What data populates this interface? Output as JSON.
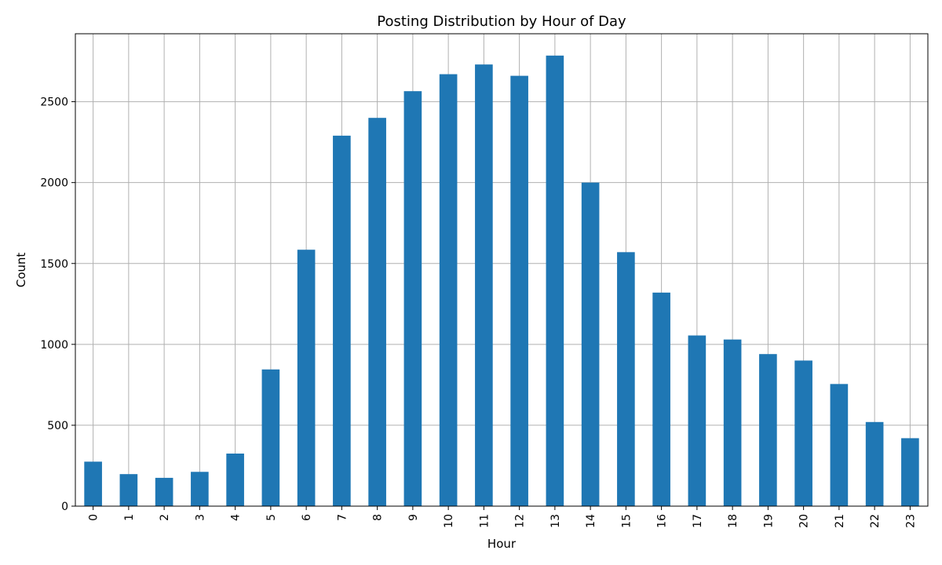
{
  "chart_data": {
    "type": "bar",
    "title": "Posting Distribution by Hour of Day",
    "xlabel": "Hour",
    "ylabel": "Count",
    "categories": [
      "0",
      "1",
      "2",
      "3",
      "4",
      "5",
      "6",
      "7",
      "8",
      "9",
      "10",
      "11",
      "12",
      "13",
      "14",
      "15",
      "16",
      "17",
      "18",
      "19",
      "20",
      "21",
      "22",
      "23"
    ],
    "values": [
      275,
      198,
      175,
      212,
      325,
      845,
      1585,
      2290,
      2400,
      2565,
      2670,
      2730,
      2660,
      2785,
      2000,
      1570,
      1320,
      1055,
      1030,
      940,
      900,
      755,
      520,
      420
    ],
    "ylim": [
      0,
      2920
    ],
    "yticks": [
      0,
      500,
      1000,
      1500,
      2000,
      2500
    ],
    "grid": true,
    "bar_color": "#1f77b4",
    "grid_color": "#b0b0b0"
  }
}
